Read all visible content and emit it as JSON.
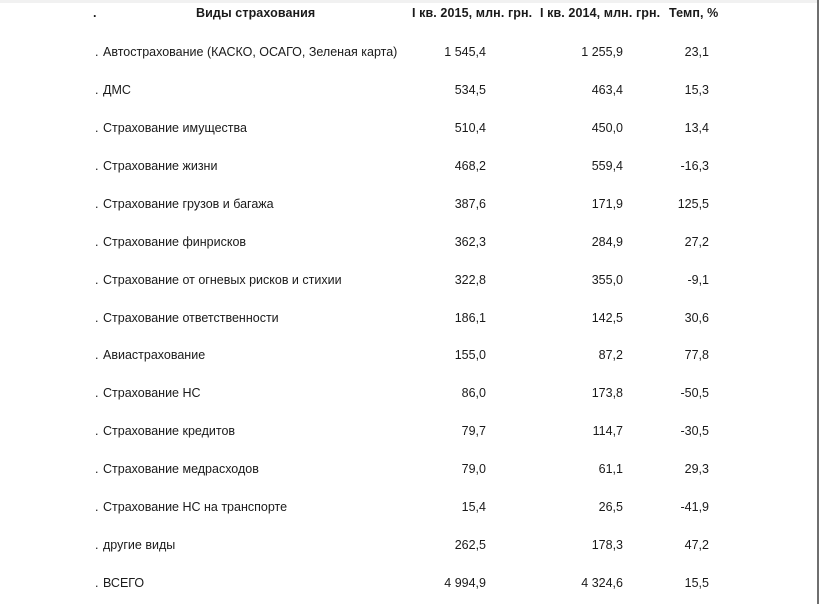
{
  "header": {
    "dot": ".",
    "name": "Виды страхования",
    "q2015": "I кв. 2015, млн. грн.",
    "q2014": "I кв. 2014, млн. грн.",
    "tempo": "Темп, %"
  },
  "rows": [
    {
      "dot": ".",
      "name": "Автострахование (КАСКО, ОСАГО, Зеленая карта)",
      "q2015": "1 545,4",
      "q2014": "1 255,9",
      "tempo": "23,1"
    },
    {
      "dot": ".",
      "name": "ДМС",
      "q2015": "534,5",
      "q2014": "463,4",
      "tempo": "15,3"
    },
    {
      "dot": ".",
      "name": "Страхование имущества",
      "q2015": "510,4",
      "q2014": "450,0",
      "tempo": "13,4"
    },
    {
      "dot": ".",
      "name": "Страхование жизни",
      "q2015": "468,2",
      "q2014": "559,4",
      "tempo": "-16,3"
    },
    {
      "dot": ".",
      "name": "Страхование грузов и багажа",
      "q2015": "387,6",
      "q2014": "171,9",
      "tempo": "125,5"
    },
    {
      "dot": ".",
      "name": "Страхование финрисков",
      "q2015": "362,3",
      "q2014": "284,9",
      "tempo": "27,2"
    },
    {
      "dot": ".",
      "name": "Страхование от огневых рисков и стихии",
      "q2015": "322,8",
      "q2014": "355,0",
      "tempo": "-9,1"
    },
    {
      "dot": ".",
      "name": "Страхование ответственности",
      "q2015": "186,1",
      "q2014": "142,5",
      "tempo": "30,6"
    },
    {
      "dot": ".",
      "name": "Авиастрахование",
      "q2015": "155,0",
      "q2014": "87,2",
      "tempo": "77,8"
    },
    {
      "dot": ".",
      "name": "Страхование НС",
      "q2015": "86,0",
      "q2014": "173,8",
      "tempo": "-50,5"
    },
    {
      "dot": ".",
      "name": "Страхование кредитов",
      "q2015": "79,7",
      "q2014": "114,7",
      "tempo": "-30,5"
    },
    {
      "dot": ".",
      "name": "Страхование медрасходов",
      "q2015": "79,0",
      "q2014": "61,1",
      "tempo": "29,3"
    },
    {
      "dot": ".",
      "name": "Страхование НС на транспорте",
      "q2015": "15,4",
      "q2014": "26,5",
      "tempo": "-41,9"
    },
    {
      "dot": ".",
      "name": "другие виды",
      "q2015": "262,5",
      "q2014": "178,3",
      "tempo": "47,2"
    },
    {
      "dot": ".",
      "name": "ВСЕГО",
      "q2015": "4 994,9",
      "q2014": "4 324,6",
      "tempo": "15,5"
    }
  ]
}
